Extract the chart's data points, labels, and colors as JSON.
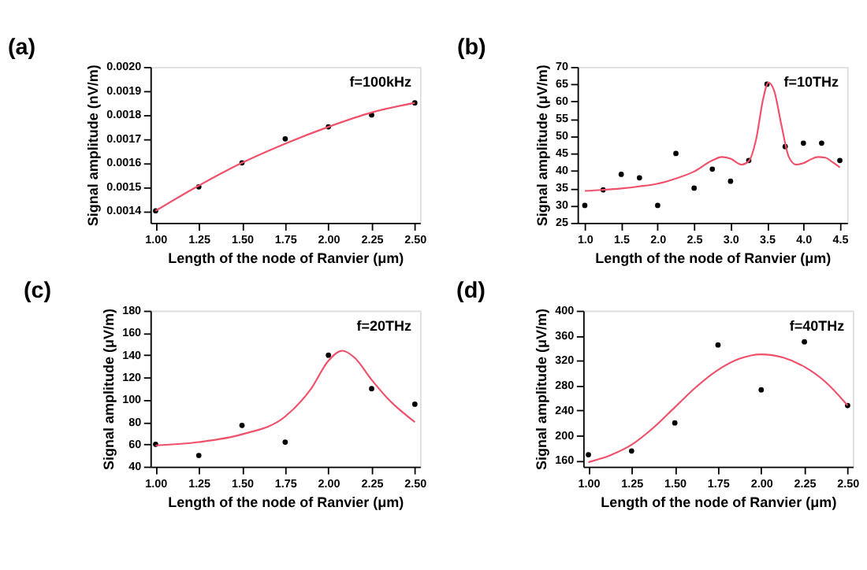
{
  "chart_data": [
    {
      "type": "scatter",
      "title": "(a)",
      "xlabel": "Length of the node of Ranvier (μm)",
      "ylabel": "Signal amplitude (nV/m)",
      "annotations": [
        "f=100kHz"
      ],
      "line_style": "solid",
      "grid": false,
      "xlim": [
        0.97,
        2.53
      ],
      "xticks": [
        {
          "value": 1.0,
          "label": "1.00"
        },
        {
          "value": 1.25,
          "label": "1.25"
        },
        {
          "value": 1.5,
          "label": "1.50"
        },
        {
          "value": 1.75,
          "label": "1.75"
        },
        {
          "value": 2.0,
          "label": "2.00"
        },
        {
          "value": 2.25,
          "label": "2.25"
        },
        {
          "value": 2.5,
          "label": "2.50"
        }
      ],
      "ylim": [
        0.00135,
        0.002
      ],
      "yticks": [
        {
          "value": 0.0014,
          "label": "0.0014"
        },
        {
          "value": 0.0015,
          "label": "0.0015"
        },
        {
          "value": 0.0016,
          "label": "0.0016"
        },
        {
          "value": 0.0017,
          "label": "0.0017"
        },
        {
          "value": 0.0018,
          "label": "0.0018"
        },
        {
          "value": 0.0019,
          "label": "0.0019"
        },
        {
          "value": 0.002,
          "label": "0.0020"
        }
      ],
      "series": [
        {
          "color": "#000000",
          "marker": "circle",
          "x": [
            1.0,
            1.25,
            1.5,
            1.75,
            2.0,
            2.25,
            2.5
          ],
          "values": [
            0.0014,
            0.0015,
            0.0016,
            0.0017,
            0.00175,
            0.0018,
            0.00185
          ]
        },
        {
          "type": "line",
          "marker": "none",
          "color": "#f0506a",
          "x": [
            1.0,
            1.25,
            1.5,
            1.75,
            2.0,
            2.25,
            2.5
          ],
          "values": [
            0.0014,
            0.001505,
            0.0016,
            0.00168,
            0.00175,
            0.00181,
            0.00185
          ]
        }
      ]
    },
    {
      "type": "scatter",
      "title": "(b)",
      "xlabel": "Length of the node of Ranvier (μm)",
      "ylabel": "Signal amplitude (μV/m)",
      "annotations": [
        "f=10THz"
      ],
      "line_style": "solid",
      "grid": false,
      "xlim": [
        0.9,
        4.6
      ],
      "xticks": [
        {
          "value": 1.0,
          "label": "1.0"
        },
        {
          "value": 1.5,
          "label": "1.5"
        },
        {
          "value": 2.0,
          "label": "2.0"
        },
        {
          "value": 2.5,
          "label": "2.5"
        },
        {
          "value": 3.0,
          "label": "3.0"
        },
        {
          "value": 3.5,
          "label": "3.5"
        },
        {
          "value": 4.0,
          "label": "4.0"
        },
        {
          "value": 4.5,
          "label": "4.5"
        }
      ],
      "ylim": [
        25,
        70
      ],
      "yticks": [
        25,
        30,
        35,
        40,
        45,
        50,
        55,
        60,
        65,
        70
      ],
      "series": [
        {
          "color": "#000000",
          "marker": "circle",
          "x": [
            1.0,
            1.25,
            1.5,
            1.75,
            2.0,
            2.25,
            2.5,
            2.75,
            3.0,
            3.25,
            3.5,
            3.75,
            4.0,
            4.25,
            4.5
          ],
          "values": [
            30,
            34.5,
            39,
            38,
            30,
            45,
            35,
            40.5,
            37,
            43,
            65,
            47,
            48,
            48,
            43
          ]
        },
        {
          "type": "line",
          "marker": "none",
          "color": "#f0506a",
          "x": [
            1.0,
            1.25,
            1.5,
            1.75,
            2.0,
            2.25,
            2.5,
            2.75,
            2.88,
            3.0,
            3.15,
            3.25,
            3.35,
            3.45,
            3.52,
            3.6,
            3.7,
            3.8,
            3.9,
            4.0,
            4.1,
            4.2,
            4.3,
            4.4,
            4.5
          ],
          "values": [
            34.2,
            34.5,
            34.9,
            35.5,
            36.3,
            37.8,
            39.8,
            43.0,
            44.0,
            43.5,
            41.8,
            42.8,
            49,
            61,
            65.5,
            63,
            53,
            44,
            41.8,
            42.2,
            43.3,
            44,
            43.8,
            42.5,
            41
          ]
        }
      ]
    },
    {
      "type": "scatter",
      "title": "(c)",
      "xlabel": "Length of the node of Ranvier (μm)",
      "ylabel": "Signal amplitude (μV/m)",
      "annotations": [
        "f=20THz"
      ],
      "line_style": "solid",
      "grid": false,
      "xlim": [
        0.97,
        2.53
      ],
      "xticks": [
        {
          "value": 1.0,
          "label": "1.00"
        },
        {
          "value": 1.25,
          "label": "1.25"
        },
        {
          "value": 1.5,
          "label": "1.50"
        },
        {
          "value": 1.75,
          "label": "1.75"
        },
        {
          "value": 2.0,
          "label": "2.00"
        },
        {
          "value": 2.25,
          "label": "2.25"
        },
        {
          "value": 2.5,
          "label": "2.50"
        }
      ],
      "ylim": [
        40,
        180
      ],
      "yticks": [
        40,
        60,
        80,
        100,
        120,
        140,
        160,
        180
      ],
      "series": [
        {
          "color": "#000000",
          "marker": "circle",
          "x": [
            1.0,
            1.25,
            1.5,
            1.75,
            2.0,
            2.25,
            2.5
          ],
          "values": [
            60,
            50,
            77,
            62,
            140,
            110,
            96
          ]
        },
        {
          "type": "line",
          "marker": "none",
          "color": "#f0506a",
          "x": [
            1.0,
            1.25,
            1.5,
            1.75,
            1.9,
            2.0,
            2.08,
            2.15,
            2.25,
            2.35,
            2.5
          ],
          "values": [
            59,
            62,
            69,
            85,
            110,
            135,
            144,
            138,
            118,
            100,
            80
          ]
        }
      ]
    },
    {
      "type": "scatter",
      "title": "(d)",
      "xlabel": "Length of the node of Ranvier (μm)",
      "ylabel": "Signal amplitude (μV/m)",
      "annotations": [
        "f=40THz"
      ],
      "line_style": "solid",
      "grid": false,
      "xlim": [
        0.97,
        2.53
      ],
      "xticks": [
        {
          "value": 1.0,
          "label": "1.00"
        },
        {
          "value": 1.25,
          "label": "1.25"
        },
        {
          "value": 1.5,
          "label": "1.50"
        },
        {
          "value": 1.75,
          "label": "1.75"
        },
        {
          "value": 2.0,
          "label": "2.00"
        },
        {
          "value": 2.25,
          "label": "2.25"
        },
        {
          "value": 2.5,
          "label": "2.50"
        }
      ],
      "ylim": [
        150,
        400
      ],
      "yticks": [
        160,
        200,
        240,
        280,
        320,
        360,
        400
      ],
      "series": [
        {
          "color": "#000000",
          "marker": "circle",
          "x": [
            1.0,
            1.25,
            1.5,
            1.75,
            2.0,
            2.25,
            2.5
          ],
          "values": [
            169,
            175,
            220,
            345,
            273,
            350,
            248
          ]
        },
        {
          "type": "line",
          "marker": "none",
          "color": "#f0506a",
          "x": [
            1.0,
            1.125,
            1.25,
            1.375,
            1.5,
            1.625,
            1.75,
            1.875,
            2.0,
            2.125,
            2.25,
            2.375,
            2.5
          ],
          "values": [
            157,
            168,
            185,
            212,
            245,
            278,
            305,
            323,
            330,
            325,
            310,
            285,
            248
          ]
        }
      ]
    }
  ]
}
